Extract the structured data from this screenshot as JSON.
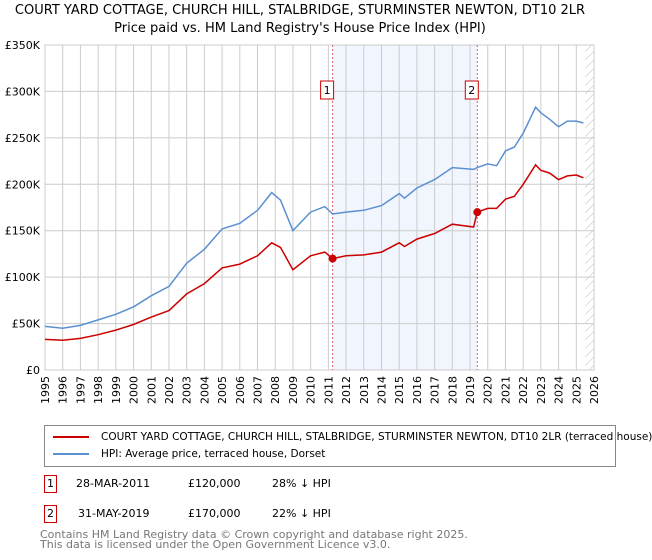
{
  "chart_data": {
    "type": "line",
    "title": "COURT YARD COTTAGE, CHURCH HILL, STALBRIDGE, STURMINSTER NEWTON, DT10 2LR",
    "subtitle": "Price paid vs. HM Land Registry's House Price Index (HPI)",
    "xlim": [
      1995,
      2026
    ],
    "ylim": [
      0,
      350000
    ],
    "x_ticks": [
      "1995",
      "1996",
      "1997",
      "1998",
      "1999",
      "2000",
      "2001",
      "2002",
      "2003",
      "2004",
      "2005",
      "2006",
      "2007",
      "2008",
      "2009",
      "2010",
      "2011",
      "2012",
      "2013",
      "2014",
      "2015",
      "2016",
      "2017",
      "2018",
      "2019",
      "2020",
      "2021",
      "2022",
      "2023",
      "2024",
      "2025",
      "2026"
    ],
    "y_ticks": [
      {
        "v": 0,
        "label": "£0"
      },
      {
        "v": 50000,
        "label": "£50K"
      },
      {
        "v": 100000,
        "label": "£100K"
      },
      {
        "v": 150000,
        "label": "£150K"
      },
      {
        "v": 200000,
        "label": "£200K"
      },
      {
        "v": 250000,
        "label": "£250K"
      },
      {
        "v": 300000,
        "label": "£300K"
      },
      {
        "v": 350000,
        "label": "£350K"
      }
    ],
    "grid": true,
    "shaded_range": [
      2011.24,
      2019.41
    ],
    "hatched_from": 2025.5,
    "series": [
      {
        "name": "COURT YARD COTTAGE, CHURCH HILL, STALBRIDGE, STURMINSTER NEWTON, DT10 2LR (terraced house)",
        "color": "#cc0000",
        "x": [
          1995,
          1996,
          1997,
          1998,
          1999,
          2000,
          2001,
          2002,
          2003,
          2004,
          2005,
          2006,
          2007,
          2007.8,
          2008.3,
          2009,
          2010,
          2010.8,
          2011.24,
          2012,
          2013,
          2014,
          2015,
          2015.3,
          2016,
          2017,
          2018,
          2019.2,
          2019.41,
          2020,
          2020.5,
          2021,
          2021.5,
          2022,
          2022.7,
          2023,
          2023.5,
          2024,
          2024.5,
          2025,
          2025.4
        ],
        "y": [
          33000,
          32000,
          34000,
          38000,
          43000,
          49000,
          57000,
          64000,
          82000,
          93000,
          110000,
          114000,
          123000,
          137000,
          132000,
          108000,
          123000,
          127000,
          120000,
          123000,
          124000,
          127000,
          137000,
          133000,
          141000,
          147000,
          157000,
          154000,
          170000,
          174000,
          174000,
          184000,
          187000,
          200000,
          221000,
          215000,
          212000,
          205000,
          209000,
          210000,
          207000
        ]
      },
      {
        "name": "HPI: Average price, terraced house, Dorset",
        "color": "#5b8fd0",
        "x": [
          1995,
          1996,
          1997,
          1998,
          1999,
          2000,
          2001,
          2002,
          2003,
          2004,
          2005,
          2006,
          2007,
          2007.8,
          2008.3,
          2009,
          2010,
          2010.8,
          2011.24,
          2012,
          2013,
          2014,
          2015,
          2015.3,
          2016,
          2017,
          2018,
          2019.2,
          2019.41,
          2020,
          2020.5,
          2021,
          2021.5,
          2022,
          2022.7,
          2023,
          2023.5,
          2024,
          2024.5,
          2025,
          2025.4
        ],
        "y": [
          47000,
          45000,
          48000,
          54000,
          60000,
          68000,
          80000,
          90000,
          115000,
          130000,
          152000,
          158000,
          172000,
          191000,
          183000,
          150000,
          170000,
          176000,
          168000,
          170000,
          172000,
          177000,
          190000,
          185000,
          196000,
          205000,
          218000,
          216000,
          218000,
          222000,
          220000,
          236000,
          240000,
          255000,
          283000,
          277000,
          270000,
          262000,
          268000,
          268000,
          266000
        ]
      }
    ],
    "sales": [
      {
        "id": "1",
        "x": 2011.24,
        "y": 120000,
        "date": "28-MAR-2011",
        "price": "£120,000",
        "delta": "28% ↓ HPI"
      },
      {
        "id": "2",
        "x": 2019.41,
        "y": 170000,
        "date": "31-MAY-2019",
        "price": "£170,000",
        "delta": "22% ↓ HPI"
      }
    ]
  },
  "legend": {
    "red": "COURT YARD COTTAGE, CHURCH HILL, STALBRIDGE, STURMINSTER NEWTON, DT10 2LR (terraced house)",
    "blue": "HPI: Average price, terraced house, Dorset"
  },
  "footer": {
    "line1": "Contains HM Land Registry data © Crown copyright and database right 2025.",
    "line2": "This data is licensed under the Open Government Licence v3.0."
  }
}
